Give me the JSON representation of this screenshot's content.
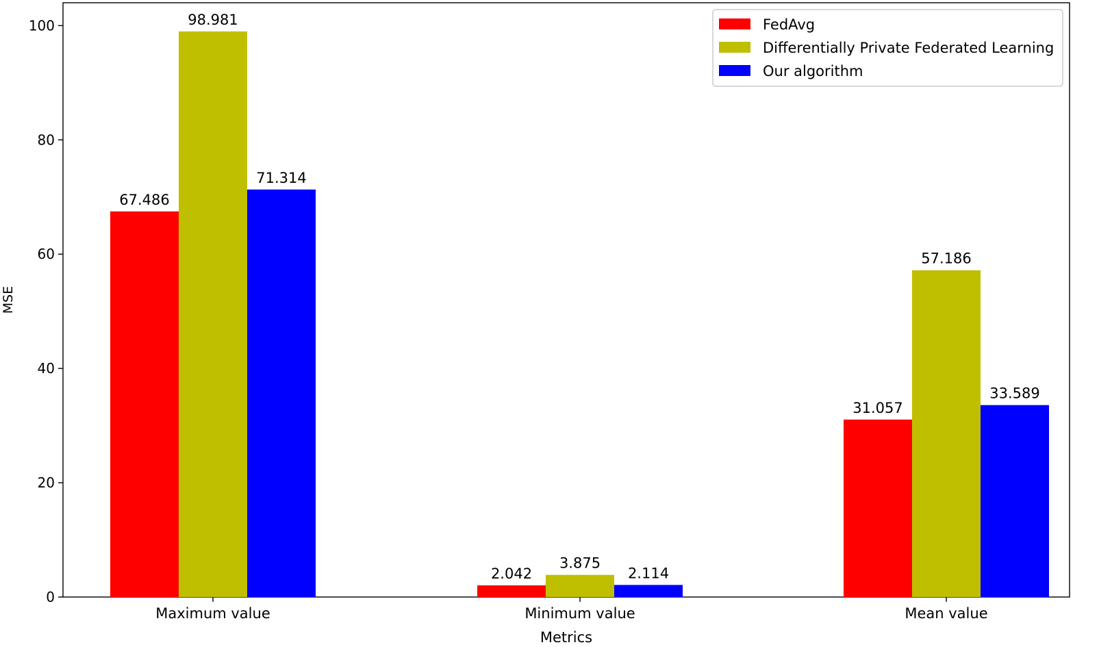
{
  "chart_data": {
    "type": "bar",
    "title": "",
    "xlabel": "Metrics",
    "ylabel": "MSE",
    "categories": [
      "Maximum value",
      "Minimum value",
      "Mean value"
    ],
    "ylim": [
      0,
      104
    ],
    "yticks": [
      0,
      20,
      40,
      60,
      80,
      100
    ],
    "grid": false,
    "legend_position": "top-right",
    "series": [
      {
        "name": "FedAvg",
        "color": "#ff0000",
        "values": [
          67.486,
          2.042,
          31.057
        ]
      },
      {
        "name": "Differentially Private Federated Learning",
        "color": "#bfbf00",
        "values": [
          98.981,
          3.875,
          57.186
        ]
      },
      {
        "name": "Our algorithm",
        "color": "#0000ff",
        "values": [
          71.314,
          2.114,
          33.589
        ]
      }
    ],
    "data_labels": [
      [
        "67.486",
        "2.042",
        "31.057"
      ],
      [
        "98.981",
        "3.875",
        "57.186"
      ],
      [
        "71.314",
        "2.114",
        "33.589"
      ]
    ]
  }
}
